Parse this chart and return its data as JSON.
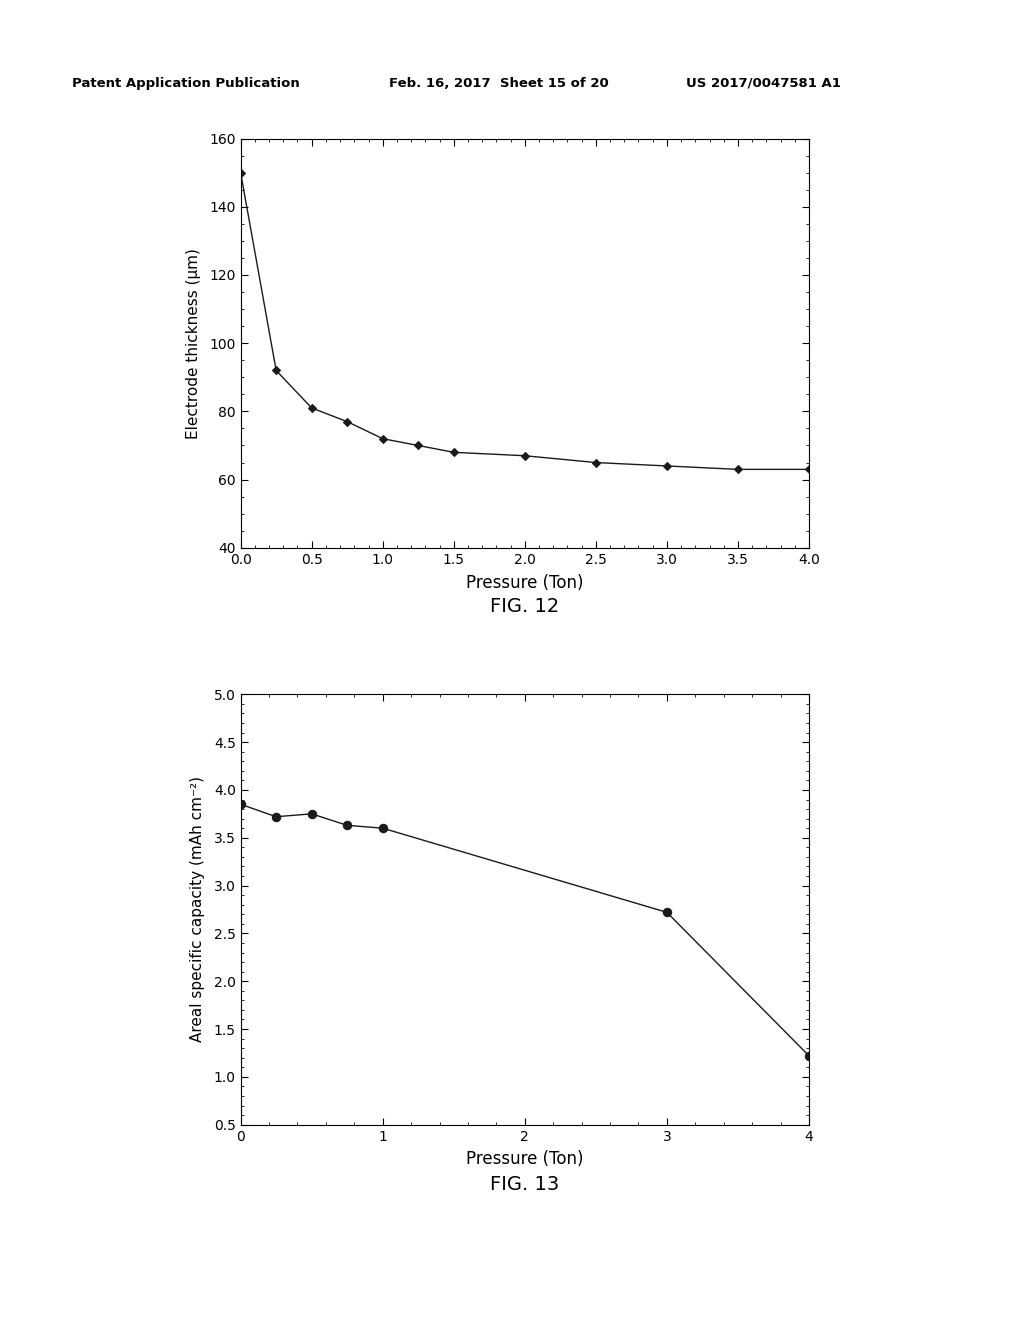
{
  "fig12": {
    "x": [
      0.0,
      0.25,
      0.5,
      0.75,
      1.0,
      1.25,
      1.5,
      2.0,
      2.5,
      3.0,
      3.5,
      4.0
    ],
    "y": [
      150,
      92,
      81,
      77,
      72,
      70,
      68,
      67,
      65,
      64,
      63,
      63
    ],
    "xlabel": "Pressure (Ton)",
    "ylabel": "Electrode thickness (μm)",
    "xlim": [
      0.0,
      4.0
    ],
    "ylim": [
      40,
      160
    ],
    "xticks": [
      0.0,
      0.5,
      1.0,
      1.5,
      2.0,
      2.5,
      3.0,
      3.5,
      4.0
    ],
    "yticks": [
      40,
      60,
      80,
      100,
      120,
      140,
      160
    ],
    "caption": "FIG. 12"
  },
  "fig13": {
    "x": [
      0.0,
      0.25,
      0.5,
      0.75,
      1.0,
      3.0,
      4.0
    ],
    "y": [
      3.85,
      3.72,
      3.75,
      3.63,
      3.6,
      2.72,
      1.22
    ],
    "xlabel": "Pressure (Ton)",
    "ylabel": "Areal specific capacity (mAh cm⁻²)",
    "xlim": [
      0.0,
      4.0
    ],
    "ylim": [
      0.5,
      5.0
    ],
    "xticks": [
      0,
      1,
      2,
      3,
      4
    ],
    "yticks": [
      0.5,
      1.0,
      1.5,
      2.0,
      2.5,
      3.0,
      3.5,
      4.0,
      4.5,
      5.0
    ],
    "caption": "FIG. 13"
  },
  "header_left": "Patent Application Publication",
  "header_mid": "Feb. 16, 2017  Sheet 15 of 20",
  "header_right": "US 2017/0047581 A1",
  "background_color": "#ffffff",
  "plot_bg": "#ffffff",
  "line_color": "#1a1a1a",
  "marker_color": "#1a1a1a"
}
